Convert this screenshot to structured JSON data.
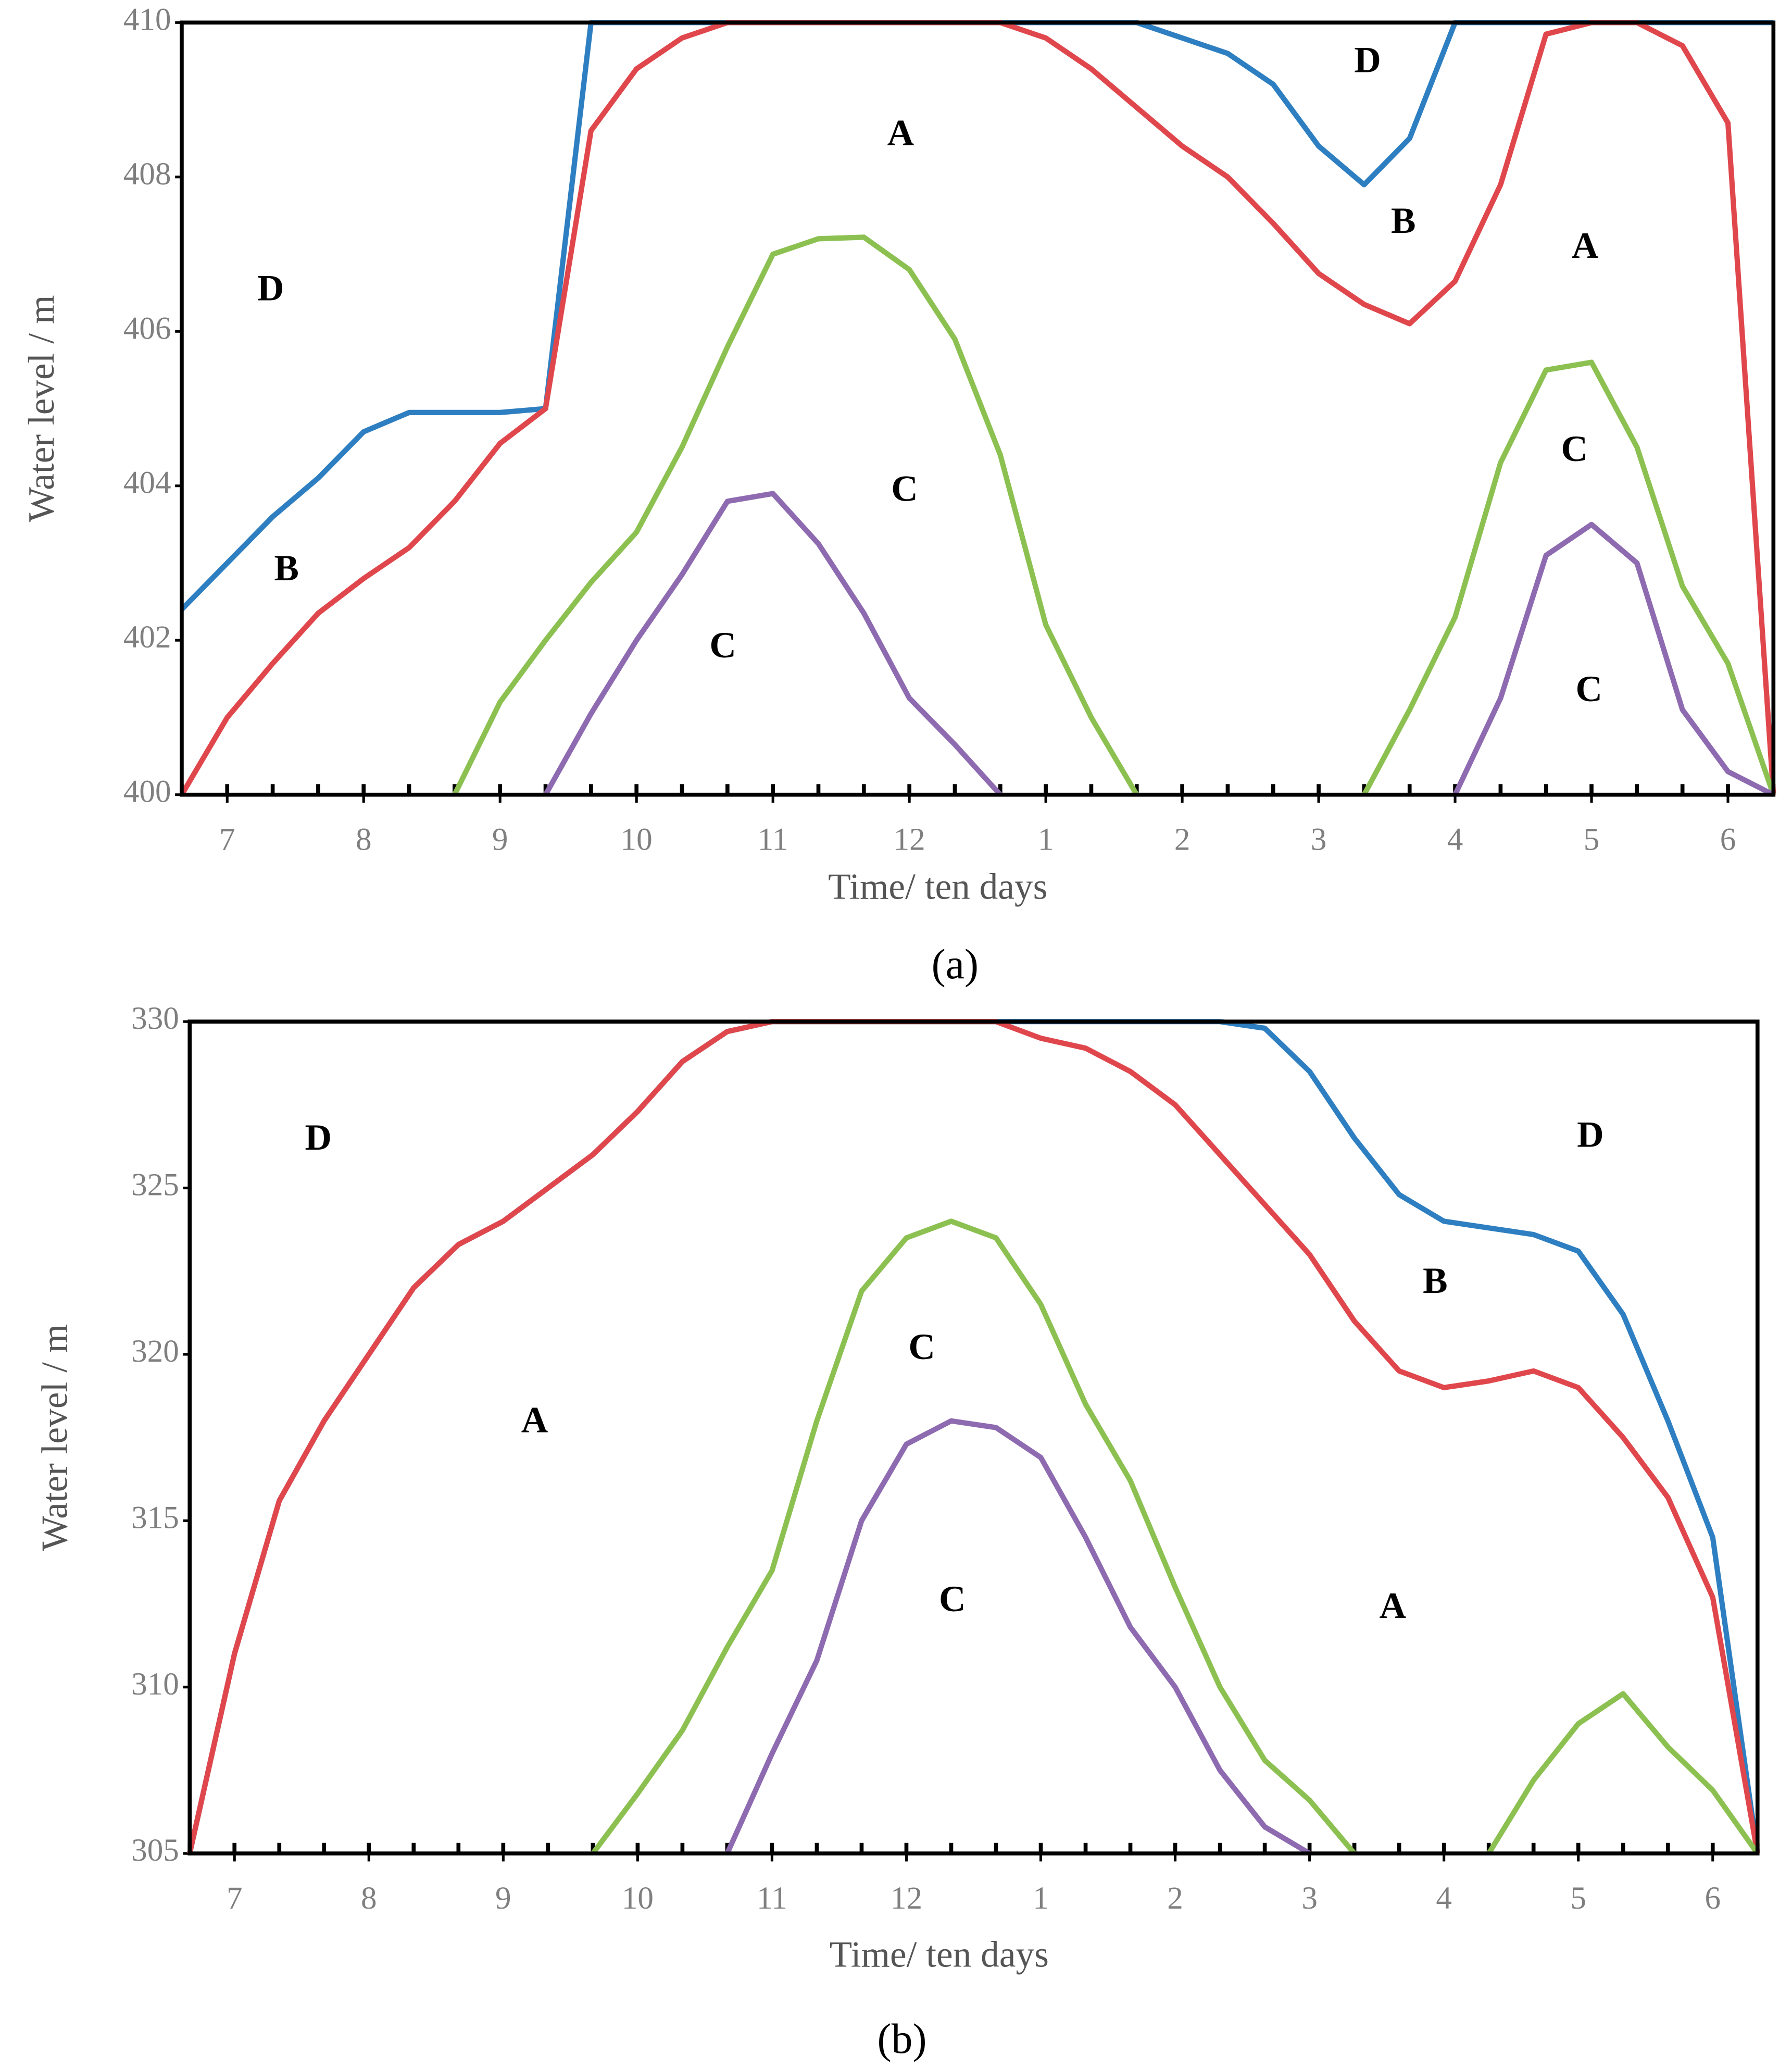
{
  "chart_data": [
    {
      "type": "line",
      "caption": "(a)",
      "xlabel": "Time/ ten days",
      "ylabel": "Water level / m",
      "x": [
        0,
        1,
        2,
        3,
        4,
        5,
        6,
        7,
        8,
        9,
        10,
        11,
        12,
        13,
        14,
        15,
        16,
        17,
        18,
        19,
        20,
        21,
        22,
        23,
        24,
        25,
        26,
        27,
        28,
        29,
        30,
        31,
        32,
        33,
        34,
        35
      ],
      "xlim": [
        0,
        35
      ],
      "xticks": [
        {
          "value": 1,
          "label": "7"
        },
        {
          "value": 4,
          "label": "8"
        },
        {
          "value": 7,
          "label": "9"
        },
        {
          "value": 10,
          "label": "10"
        },
        {
          "value": 13,
          "label": "11"
        },
        {
          "value": 16,
          "label": "12"
        },
        {
          "value": 19,
          "label": "1"
        },
        {
          "value": 22,
          "label": "2"
        },
        {
          "value": 25,
          "label": "3"
        },
        {
          "value": 28,
          "label": "4"
        },
        {
          "value": 31,
          "label": "5"
        },
        {
          "value": 34,
          "label": "6"
        }
      ],
      "ylim": [
        400,
        410
      ],
      "yticks": [
        400,
        402,
        404,
        406,
        408,
        410
      ],
      "series": [
        {
          "color": "#2e7fc1",
          "values": [
            402.4,
            403.0,
            403.6,
            404.1,
            404.7,
            404.95,
            404.95,
            404.95,
            405.0,
            410,
            410,
            410,
            410,
            410,
            410,
            410,
            410,
            410,
            410,
            410,
            410,
            410,
            409.8,
            409.6,
            409.2,
            408.4,
            407.9,
            408.5,
            410,
            410,
            410,
            410,
            410,
            410,
            410,
            410
          ]
        },
        {
          "color": "#e0474c",
          "values": [
            400,
            401.0,
            401.7,
            402.35,
            402.8,
            403.2,
            403.8,
            404.55,
            405.0,
            408.6,
            409.4,
            409.8,
            410,
            410,
            410,
            410,
            410,
            410,
            410,
            409.8,
            409.4,
            408.9,
            408.4,
            408.0,
            407.4,
            406.75,
            406.35,
            406.1,
            406.65,
            407.9,
            409.85,
            410,
            410,
            409.7,
            408.7,
            400
          ]
        },
        {
          "color": "#8cc152",
          "values": [
            null,
            null,
            null,
            null,
            null,
            null,
            400,
            401.2,
            402.0,
            402.75,
            403.4,
            404.5,
            405.8,
            407.0,
            407.2,
            407.22,
            406.8,
            405.9,
            404.4,
            402.2,
            401.0,
            400,
            null,
            null,
            null,
            null,
            400,
            401.1,
            402.3,
            404.3,
            405.5,
            405.6,
            404.5,
            402.7,
            401.7,
            400
          ]
        },
        {
          "color": "#8e6bb0",
          "values": [
            null,
            null,
            null,
            null,
            null,
            null,
            null,
            null,
            400,
            401.05,
            402.0,
            402.85,
            403.8,
            403.9,
            403.25,
            402.35,
            401.25,
            400.65,
            400,
            null,
            null,
            null,
            null,
            null,
            null,
            null,
            null,
            null,
            400,
            401.25,
            403.1,
            403.5,
            403.0,
            401.1,
            400.3,
            400
          ]
        }
      ],
      "annotations": [
        "A",
        "D",
        "B",
        "C",
        "C",
        "D",
        "B",
        "A",
        "C",
        "C"
      ]
    },
    {
      "type": "line",
      "caption": "(b)",
      "xlabel": "Time/ ten days",
      "ylabel": "Water level / m",
      "x": [
        0,
        1,
        2,
        3,
        4,
        5,
        6,
        7,
        8,
        9,
        10,
        11,
        12,
        13,
        14,
        15,
        16,
        17,
        18,
        19,
        20,
        21,
        22,
        23,
        24,
        25,
        26,
        27,
        28,
        29,
        30,
        31,
        32,
        33,
        34,
        35
      ],
      "xlim": [
        0,
        35
      ],
      "xticks": [
        {
          "value": 1,
          "label": "7"
        },
        {
          "value": 4,
          "label": "8"
        },
        {
          "value": 7,
          "label": "9"
        },
        {
          "value": 10,
          "label": "10"
        },
        {
          "value": 13,
          "label": "11"
        },
        {
          "value": 16,
          "label": "12"
        },
        {
          "value": 19,
          "label": "1"
        },
        {
          "value": 22,
          "label": "2"
        },
        {
          "value": 25,
          "label": "3"
        },
        {
          "value": 28,
          "label": "4"
        },
        {
          "value": 31,
          "label": "5"
        },
        {
          "value": 34,
          "label": "6"
        }
      ],
      "ylim": [
        305,
        330
      ],
      "yticks": [
        305,
        310,
        315,
        320,
        325,
        330
      ],
      "series": [
        {
          "color": "#2e7fc1",
          "values": [
            305,
            311,
            315.6,
            318,
            320,
            322,
            323.3,
            324,
            325,
            326,
            327.3,
            328.8,
            329.7,
            330,
            330,
            330,
            330,
            330,
            330,
            330,
            330,
            330,
            330,
            330,
            329.8,
            328.5,
            326.5,
            324.8,
            324.0,
            323.8,
            323.6,
            323.1,
            321.2,
            318,
            314.5,
            305
          ]
        },
        {
          "color": "#e0474c",
          "values": [
            305,
            311,
            315.6,
            318,
            320,
            322,
            323.3,
            324,
            325,
            326,
            327.3,
            328.8,
            329.7,
            330,
            330,
            330,
            330,
            330,
            330,
            329.5,
            329.2,
            328.5,
            327.5,
            326,
            324.5,
            323,
            321,
            319.5,
            319.0,
            319.2,
            319.5,
            319.0,
            317.5,
            315.7,
            312.7,
            305
          ]
        },
        {
          "color": "#8cc152",
          "values": [
            null,
            null,
            null,
            null,
            null,
            null,
            null,
            null,
            null,
            305,
            306.8,
            308.7,
            311.2,
            313.5,
            318,
            321.9,
            323.5,
            324,
            323.5,
            321.5,
            318.5,
            316.2,
            313,
            310,
            307.8,
            306.6,
            305,
            null,
            null,
            305,
            307.2,
            308.9,
            309.8,
            308.2,
            306.9,
            305
          ]
        },
        {
          "color": "#8e6bb0",
          "values": [
            null,
            null,
            null,
            null,
            null,
            null,
            null,
            null,
            null,
            null,
            null,
            null,
            305,
            308,
            310.8,
            315,
            317.3,
            318,
            317.8,
            316.9,
            314.5,
            311.8,
            310,
            307.5,
            305.8,
            305,
            null,
            null,
            null,
            null,
            null,
            null,
            null,
            null,
            null,
            null
          ]
        }
      ],
      "annotations": [
        "D",
        "A",
        "C",
        "C",
        "B",
        "D",
        "A"
      ]
    }
  ]
}
